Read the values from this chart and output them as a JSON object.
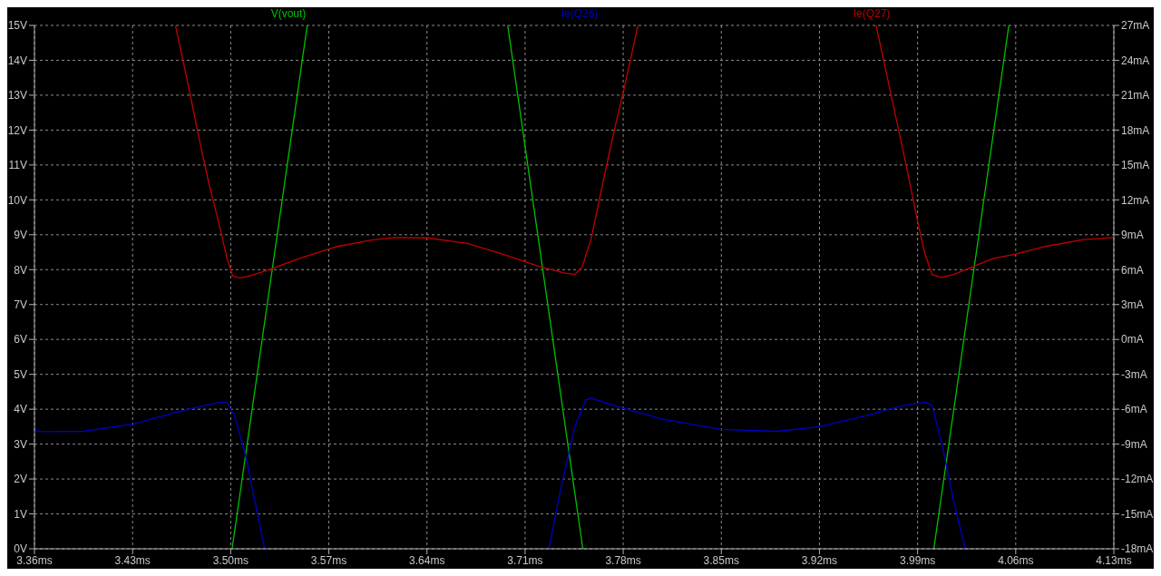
{
  "chart_data": {
    "type": "line",
    "legend": "top",
    "grid": true,
    "xlim": [
      3.36,
      4.13
    ],
    "xticks": [
      {
        "value": 3.36,
        "label": "3.36ms"
      },
      {
        "value": 3.43,
        "label": "3.43ms"
      },
      {
        "value": 3.5,
        "label": "3.50ms"
      },
      {
        "value": 3.57,
        "label": "3.57ms"
      },
      {
        "value": 3.64,
        "label": "3.64ms"
      },
      {
        "value": 3.71,
        "label": "3.71ms"
      },
      {
        "value": 3.78,
        "label": "3.78ms"
      },
      {
        "value": 3.85,
        "label": "3.85ms"
      },
      {
        "value": 3.92,
        "label": "3.92ms"
      },
      {
        "value": 3.99,
        "label": "3.99ms"
      },
      {
        "value": 4.06,
        "label": "4.06ms"
      },
      {
        "value": 4.13,
        "label": "4.13ms"
      }
    ],
    "ylim": [
      0,
      15
    ],
    "yticks": [
      {
        "value": 0,
        "label": "0V"
      },
      {
        "value": 1,
        "label": "1V"
      },
      {
        "value": 2,
        "label": "2V"
      },
      {
        "value": 3,
        "label": "3V"
      },
      {
        "value": 4,
        "label": "4V"
      },
      {
        "value": 5,
        "label": "5V"
      },
      {
        "value": 6,
        "label": "6V"
      },
      {
        "value": 7,
        "label": "7V"
      },
      {
        "value": 8,
        "label": "8V"
      },
      {
        "value": 9,
        "label": "9V"
      },
      {
        "value": 10,
        "label": "10V"
      },
      {
        "value": 11,
        "label": "11V"
      },
      {
        "value": 12,
        "label": "12V"
      },
      {
        "value": 13,
        "label": "13V"
      },
      {
        "value": 14,
        "label": "14V"
      },
      {
        "value": 15,
        "label": "15V"
      }
    ],
    "y2lim": [
      -18,
      27
    ],
    "y2ticks": [
      {
        "value": -18,
        "label": "-18mA"
      },
      {
        "value": -15,
        "label": "-15mA"
      },
      {
        "value": -12,
        "label": "-12mA"
      },
      {
        "value": -9,
        "label": "-9mA"
      },
      {
        "value": -6,
        "label": "-6mA"
      },
      {
        "value": -3,
        "label": "-3mA"
      },
      {
        "value": 0,
        "label": "0mA"
      },
      {
        "value": 3,
        "label": "3mA"
      },
      {
        "value": 6,
        "label": "6mA"
      },
      {
        "value": 9,
        "label": "9mA"
      },
      {
        "value": 12,
        "label": "12mA"
      },
      {
        "value": 15,
        "label": "15mA"
      },
      {
        "value": 18,
        "label": "18mA"
      },
      {
        "value": 21,
        "label": "21mA"
      },
      {
        "value": 24,
        "label": "24mA"
      },
      {
        "value": 27,
        "label": "27mA"
      }
    ],
    "series": [
      {
        "name": "V(vout)",
        "color": "#00c000",
        "x": [
          3.501,
          3.5546,
          3.62,
          3.6976,
          3.7512,
          3.85,
          4.0016,
          4.0551
        ],
        "values": [
          0,
          15,
          null,
          15,
          0,
          null,
          0,
          15
        ]
      },
      {
        "name": "Ie(Q26)",
        "color": "#0000c8",
        "axis": "y2",
        "x": [
          3.36,
          3.3664,
          3.3947,
          3.43,
          3.4591,
          3.4797,
          3.4925,
          3.4977,
          3.5028,
          3.5105,
          3.5183,
          3.5242,
          3.62,
          3.727,
          3.7352,
          3.7455,
          3.7532,
          3.7571,
          3.78,
          3.8098,
          3.85,
          3.8899,
          3.92,
          3.954,
          3.9797,
          3.9951,
          4.0003,
          4.008,
          4.0157,
          4.024
        ],
        "values": [
          -7.84,
          -7.93,
          -7.9,
          -7.29,
          -6.34,
          -5.73,
          -5.4,
          -5.46,
          -6.59,
          -9.94,
          -14.5,
          -18,
          null,
          -18,
          -12.98,
          -7.5,
          -5.22,
          -5.06,
          -5.92,
          -6.89,
          -7.74,
          -7.9,
          -7.5,
          -6.53,
          -5.67,
          -5.4,
          -5.67,
          -9.33,
          -13.9,
          -18
        ]
      },
      {
        "name": "Ie(Q27)",
        "color": "#c00000",
        "axis": "y2",
        "x": [
          3.4606,
          3.4694,
          3.4771,
          3.4848,
          3.4912,
          3.4977,
          3.5015,
          3.5067,
          3.5131,
          3.5273,
          3.5491,
          3.5749,
          3.6006,
          3.6163,
          3.64,
          3.6683,
          3.694,
          3.7198,
          3.7378,
          3.7455,
          3.7506,
          3.7571,
          3.7661,
          3.7738,
          3.7815,
          3.7905,
          3.88,
          3.9604,
          3.972,
          3.9823,
          3.99,
          3.9951,
          4.0003,
          4.0067,
          4.0157,
          4.0286,
          4.044,
          4.06,
          4.0826,
          4.1084,
          4.13
        ],
        "values": [
          27,
          22.04,
          17.47,
          13.2,
          10.16,
          6.81,
          5.44,
          5.29,
          5.44,
          5.99,
          6.96,
          7.97,
          8.55,
          8.76,
          8.73,
          8.27,
          7.33,
          6.29,
          5.72,
          5.59,
          6.2,
          8.64,
          13.82,
          18.08,
          22.04,
          27,
          null,
          27,
          20.51,
          14.73,
          10.16,
          7.42,
          5.59,
          5.32,
          5.59,
          6.2,
          6.96,
          7.33,
          8.03,
          8.58,
          8.76
        ]
      }
    ]
  }
}
